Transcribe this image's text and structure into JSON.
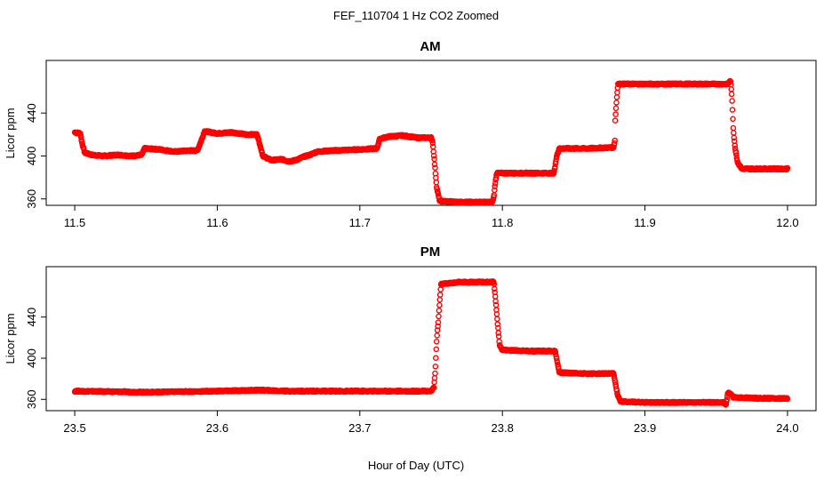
{
  "figure": {
    "title": "FEF_110704  1 Hz CO2 Zoomed",
    "xlabel": "Hour of Day (UTC)"
  },
  "colors": {
    "points": "#ff0000",
    "axes": "#000000",
    "background": "#ffffff"
  },
  "chart_data": [
    {
      "type": "scatter",
      "title": "AM",
      "ylabel": "Licor ppm",
      "xlim": [
        11.48,
        12.02
      ],
      "ylim": [
        354,
        489
      ],
      "x_ticks": [
        11.5,
        11.6,
        11.7,
        11.8,
        11.9,
        12.0
      ],
      "x_tick_labels": [
        "11.5",
        "11.6",
        "11.7",
        "11.8",
        "11.9",
        "12.0"
      ],
      "y_ticks": [
        360,
        400,
        440
      ],
      "y_tick_labels": [
        "360",
        "400",
        "440"
      ],
      "marker": "open-circle",
      "series_profile": [
        [
          11.5,
          422
        ],
        [
          11.504,
          421
        ],
        [
          11.505,
          413
        ],
        [
          11.507,
          403
        ],
        [
          11.512,
          401
        ],
        [
          11.52,
          400
        ],
        [
          11.53,
          401
        ],
        [
          11.54,
          400
        ],
        [
          11.547,
          401
        ],
        [
          11.549,
          407
        ],
        [
          11.56,
          406
        ],
        [
          11.57,
          404
        ],
        [
          11.58,
          405
        ],
        [
          11.586,
          405
        ],
        [
          11.589,
          415
        ],
        [
          11.591,
          423
        ],
        [
          11.6,
          421
        ],
        [
          11.61,
          422
        ],
        [
          11.62,
          420
        ],
        [
          11.628,
          420
        ],
        [
          11.63,
          410
        ],
        [
          11.632,
          400
        ],
        [
          11.638,
          396
        ],
        [
          11.645,
          397
        ],
        [
          11.65,
          395
        ],
        [
          11.655,
          396
        ],
        [
          11.66,
          399
        ],
        [
          11.665,
          401
        ],
        [
          11.67,
          404
        ],
        [
          11.68,
          405
        ],
        [
          11.7,
          406
        ],
        [
          11.712,
          407
        ],
        [
          11.714,
          416
        ],
        [
          11.72,
          418
        ],
        [
          11.73,
          419
        ],
        [
          11.74,
          417
        ],
        [
          11.75,
          417
        ],
        [
          11.751,
          414
        ],
        [
          11.752,
          400
        ],
        [
          11.753,
          385
        ],
        [
          11.754,
          370
        ],
        [
          11.756,
          358
        ],
        [
          11.77,
          357
        ],
        [
          11.793,
          357
        ],
        [
          11.794,
          362
        ],
        [
          11.795,
          375
        ],
        [
          11.796,
          384
        ],
        [
          11.81,
          384
        ],
        [
          11.836,
          384
        ],
        [
          11.837,
          390
        ],
        [
          11.838,
          400
        ],
        [
          11.84,
          407
        ],
        [
          11.86,
          407
        ],
        [
          11.878,
          408
        ],
        [
          11.879,
          415
        ],
        [
          11.879,
          430
        ],
        [
          11.88,
          450
        ],
        [
          11.881,
          467
        ],
        [
          11.9,
          467
        ],
        [
          11.92,
          467
        ],
        [
          11.958,
          467
        ],
        [
          11.96,
          470
        ],
        [
          11.961,
          455
        ],
        [
          11.962,
          425
        ],
        [
          11.963,
          410
        ],
        [
          11.965,
          394
        ],
        [
          11.968,
          388
        ],
        [
          11.98,
          388
        ],
        [
          12.0,
          388
        ]
      ]
    },
    {
      "type": "scatter",
      "title": "PM",
      "ylabel": "Licor ppm",
      "xlim": [
        23.48,
        24.02
      ],
      "ylim": [
        349,
        489
      ],
      "x_ticks": [
        23.5,
        23.6,
        23.7,
        23.8,
        23.9,
        24.0
      ],
      "x_tick_labels": [
        "23.5",
        "23.6",
        "23.7",
        "23.8",
        "23.9",
        "24.0"
      ],
      "y_ticks": [
        360,
        400,
        440
      ],
      "y_tick_labels": [
        "360",
        "400",
        "440"
      ],
      "marker": "open-circle",
      "series_profile": [
        [
          23.5,
          368
        ],
        [
          23.55,
          367
        ],
        [
          23.6,
          368
        ],
        [
          23.63,
          369
        ],
        [
          23.65,
          368
        ],
        [
          23.7,
          368
        ],
        [
          23.75,
          368
        ],
        [
          23.752,
          372
        ],
        [
          23.753,
          390
        ],
        [
          23.754,
          420
        ],
        [
          23.755,
          435
        ],
        [
          23.756,
          455
        ],
        [
          23.757,
          472
        ],
        [
          23.77,
          474
        ],
        [
          23.794,
          474
        ],
        [
          23.795,
          460
        ],
        [
          23.796,
          445
        ],
        [
          23.797,
          428
        ],
        [
          23.798,
          413
        ],
        [
          23.8,
          408
        ],
        [
          23.82,
          407
        ],
        [
          23.837,
          407
        ],
        [
          23.838,
          400
        ],
        [
          23.839,
          393
        ],
        [
          23.84,
          386
        ],
        [
          23.86,
          385
        ],
        [
          23.878,
          385
        ],
        [
          23.879,
          378
        ],
        [
          23.88,
          370
        ],
        [
          23.881,
          363
        ],
        [
          23.883,
          358
        ],
        [
          23.9,
          357
        ],
        [
          23.93,
          357
        ],
        [
          23.955,
          357
        ],
        [
          23.957,
          355
        ],
        [
          23.958,
          366
        ],
        [
          23.96,
          366
        ],
        [
          23.962,
          362
        ],
        [
          23.98,
          361
        ],
        [
          24.0,
          361
        ]
      ]
    }
  ]
}
